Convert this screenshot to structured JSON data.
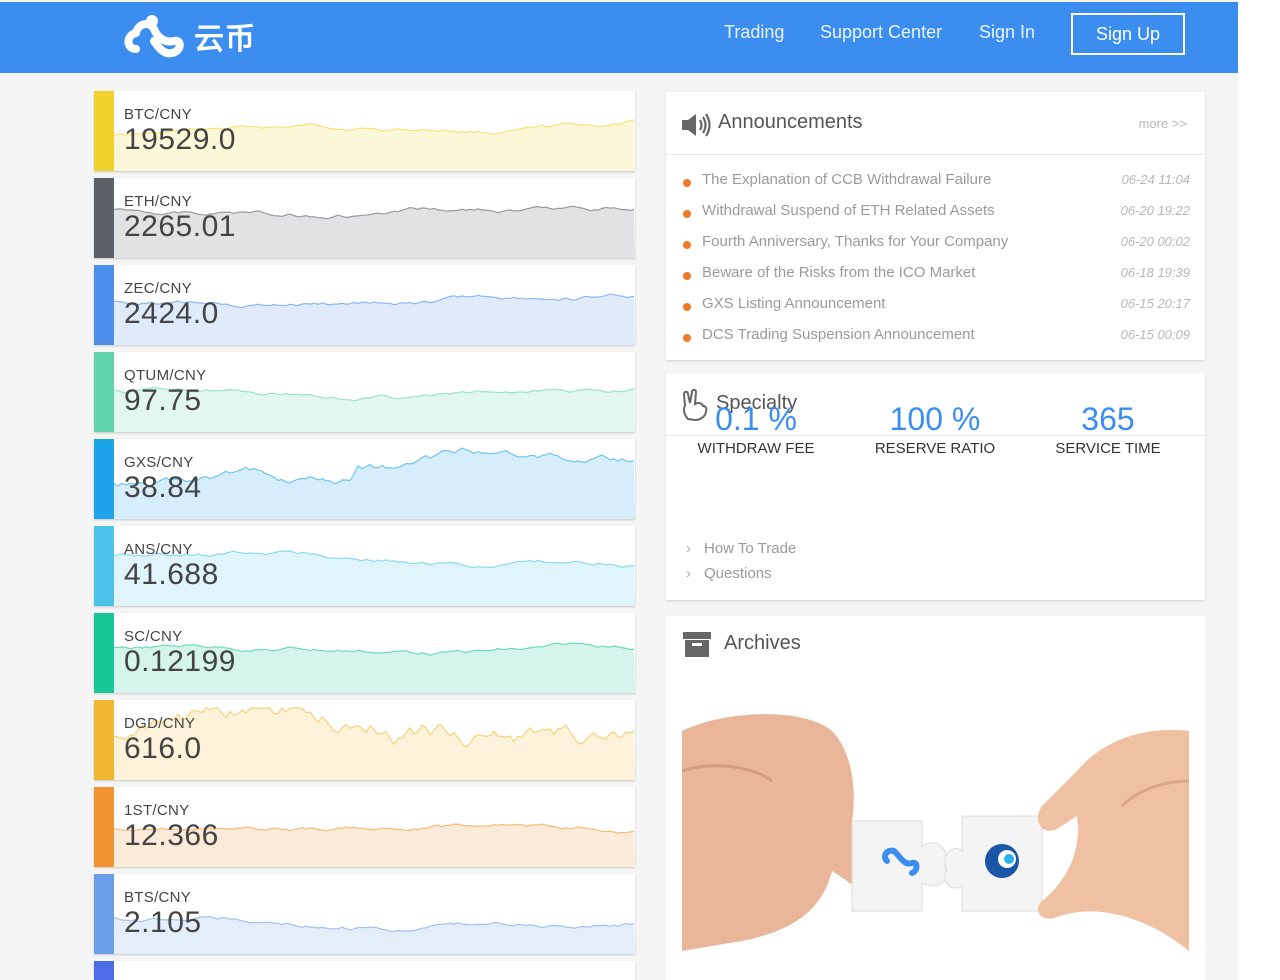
{
  "navbar": {
    "logo_text": "云币",
    "links": [
      "Trading",
      "Support Center",
      "Sign In"
    ],
    "signup_label": "Sign Up"
  },
  "tickers": [
    {
      "pair": "BTC/CNY",
      "price": "19529.0",
      "color": "#f2d12c"
    },
    {
      "pair": "ETH/CNY",
      "price": "2265.01",
      "color": "#5c6068"
    },
    {
      "pair": "ZEC/CNY",
      "price": "2424.0",
      "color": "#4c8eea"
    },
    {
      "pair": "QTUM/CNY",
      "price": "97.75",
      "color": "#5fd2ae"
    },
    {
      "pair": "GXS/CNY",
      "price": "38.84",
      "color": "#1ea2e8"
    },
    {
      "pair": "ANS/CNY",
      "price": "41.688",
      "color": "#4dc3e9"
    },
    {
      "pair": "SC/CNY",
      "price": "0.12199",
      "color": "#17c796"
    },
    {
      "pair": "DGD/CNY",
      "price": "616.0",
      "color": "#f2b730"
    },
    {
      "pair": "1ST/CNY",
      "price": "12.366",
      "color": "#f39230"
    },
    {
      "pair": "BTS/CNY",
      "price": "2.105",
      "color": "#6a9ee6"
    }
  ],
  "announcements": {
    "title": "Announcements",
    "more": "more >>",
    "items": [
      {
        "text": "The Explanation of CCB Withdrawal Failure",
        "time": "06-24 11:04"
      },
      {
        "text": "Withdrawal Suspend of ETH Related Assets",
        "time": "06-20 19:22"
      },
      {
        "text": "Fourth Anniversary, Thanks for Your Company",
        "time": "06-20 00:02"
      },
      {
        "text": "Beware of the Risks from the ICO Market",
        "time": "06-18 19:39"
      },
      {
        "text": "GXS Listing Announcement",
        "time": "06-15 20:17"
      },
      {
        "text": "DCS Trading Suspension Announcement",
        "time": "06-15 00:09"
      }
    ]
  },
  "specialty": {
    "title": "Specialty",
    "stats": [
      {
        "value": "0.1 %",
        "label": "WITHDRAW FEE"
      },
      {
        "value": "100 %",
        "label": "RESERVE RATIO"
      },
      {
        "value": "365",
        "label": "SERVICE TIME"
      }
    ],
    "links": [
      "How To Trade",
      "Questions"
    ]
  },
  "archives": {
    "title": "Archives"
  },
  "icons": {
    "announcements": "speaker-icon",
    "specialty": "victory-hand-icon",
    "archives": "archive-box-icon"
  }
}
